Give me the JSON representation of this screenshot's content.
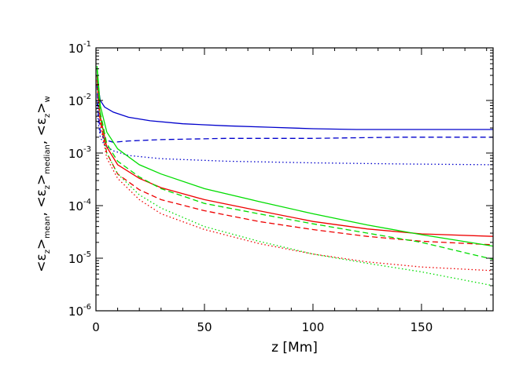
{
  "chart_data": {
    "type": "line",
    "xlabel": "z [Mm]",
    "ylabel_parts": [
      "<ε",
      "z",
      ">",
      "mean",
      ",  <ε",
      "z",
      ">",
      "median",
      ",  <ε",
      "z",
      ">",
      "w"
    ],
    "xlim": [
      0,
      183
    ],
    "ylim": [
      1e-06,
      0.1
    ],
    "yscale": "log",
    "x_ticks": [
      0,
      50,
      100,
      150
    ],
    "x_tick_labels": [
      "0",
      "50",
      "100",
      "150"
    ],
    "y_ticks": [
      {
        "value": 1e-06,
        "base": "10",
        "exp": "-6"
      },
      {
        "value": 1e-05,
        "base": "10",
        "exp": "-5"
      },
      {
        "value": 0.0001,
        "base": "10",
        "exp": "-4"
      },
      {
        "value": 0.001,
        "base": "10",
        "exp": "-3"
      },
      {
        "value": 0.01,
        "base": "10",
        "exp": "-2"
      },
      {
        "value": 0.1,
        "base": "10",
        "exp": "-1"
      }
    ],
    "grid": false,
    "series": [
      {
        "color": "#0000cc",
        "style": "solid",
        "points": [
          [
            0.5,
            0.03
          ],
          [
            1,
            0.018
          ],
          [
            2,
            0.01
          ],
          [
            4,
            0.0075
          ],
          [
            8,
            0.006
          ],
          [
            15,
            0.0048
          ],
          [
            25,
            0.0041
          ],
          [
            40,
            0.0036
          ],
          [
            60,
            0.0033
          ],
          [
            80,
            0.0031
          ],
          [
            100,
            0.0029
          ],
          [
            120,
            0.0028
          ],
          [
            140,
            0.0028
          ],
          [
            160,
            0.0028
          ],
          [
            183,
            0.0028
          ]
        ]
      },
      {
        "color": "#0000cc",
        "style": "dashed",
        "points": [
          [
            0.5,
            0.02
          ],
          [
            1,
            0.006
          ],
          [
            2,
            0.0025
          ],
          [
            4,
            0.0018
          ],
          [
            8,
            0.0016
          ],
          [
            15,
            0.0017
          ],
          [
            30,
            0.0018
          ],
          [
            60,
            0.0019
          ],
          [
            100,
            0.0019
          ],
          [
            140,
            0.002
          ],
          [
            183,
            0.002
          ]
        ]
      },
      {
        "color": "#0000cc",
        "style": "dotted",
        "points": [
          [
            0.5,
            0.01
          ],
          [
            1,
            0.004
          ],
          [
            2,
            0.002
          ],
          [
            4,
            0.0014
          ],
          [
            8,
            0.0011
          ],
          [
            15,
            0.0009
          ],
          [
            30,
            0.00078
          ],
          [
            60,
            0.0007
          ],
          [
            100,
            0.00065
          ],
          [
            140,
            0.00062
          ],
          [
            183,
            0.0006
          ]
        ]
      },
      {
        "color": "#ee0000",
        "style": "solid",
        "points": [
          [
            0.5,
            0.03
          ],
          [
            2,
            0.005
          ],
          [
            5,
            0.0013
          ],
          [
            10,
            0.0006
          ],
          [
            20,
            0.00033
          ],
          [
            30,
            0.00022
          ],
          [
            50,
            0.00013
          ],
          [
            75,
            8e-05
          ],
          [
            100,
            5e-05
          ],
          [
            125,
            3.6e-05
          ],
          [
            150,
            2.9e-05
          ],
          [
            183,
            2.6e-05
          ]
        ]
      },
      {
        "color": "#ee0000",
        "style": "dashed",
        "points": [
          [
            0.5,
            0.025
          ],
          [
            2,
            0.004
          ],
          [
            5,
            0.001
          ],
          [
            10,
            0.0004
          ],
          [
            20,
            0.0002
          ],
          [
            30,
            0.00013
          ],
          [
            50,
            8e-05
          ],
          [
            75,
            5e-05
          ],
          [
            100,
            3.5e-05
          ],
          [
            125,
            2.6e-05
          ],
          [
            150,
            2.1e-05
          ],
          [
            183,
            1.8e-05
          ]
        ]
      },
      {
        "color": "#ee0000",
        "style": "dotted",
        "points": [
          [
            0.5,
            0.02
          ],
          [
            2,
            0.0035
          ],
          [
            5,
            0.0008
          ],
          [
            10,
            0.00033
          ],
          [
            20,
            0.00013
          ],
          [
            30,
            7e-05
          ],
          [
            50,
            3.5e-05
          ],
          [
            75,
            1.9e-05
          ],
          [
            100,
            1.2e-05
          ],
          [
            125,
            8.5e-06
          ],
          [
            150,
            6.8e-06
          ],
          [
            183,
            5.8e-06
          ]
        ]
      },
      {
        "color": "#00dd00",
        "style": "solid",
        "points": [
          [
            0.5,
            0.045
          ],
          [
            2,
            0.008
          ],
          [
            5,
            0.0025
          ],
          [
            10,
            0.0012
          ],
          [
            20,
            0.0006
          ],
          [
            30,
            0.0004
          ],
          [
            50,
            0.00021
          ],
          [
            75,
            0.00012
          ],
          [
            100,
            7e-05
          ],
          [
            125,
            4.3e-05
          ],
          [
            150,
            2.8e-05
          ],
          [
            183,
            1.7e-05
          ]
        ]
      },
      {
        "color": "#00dd00",
        "style": "dashed",
        "points": [
          [
            0.5,
            0.04
          ],
          [
            2,
            0.006
          ],
          [
            5,
            0.0015
          ],
          [
            10,
            0.0007
          ],
          [
            20,
            0.00035
          ],
          [
            30,
            0.00021
          ],
          [
            50,
            0.00011
          ],
          [
            75,
            7e-05
          ],
          [
            100,
            4.5e-05
          ],
          [
            125,
            3e-05
          ],
          [
            150,
            2e-05
          ],
          [
            183,
            9.5e-06
          ]
        ]
      },
      {
        "color": "#00dd00",
        "style": "dotted",
        "points": [
          [
            0.5,
            0.03
          ],
          [
            2,
            0.005
          ],
          [
            5,
            0.001
          ],
          [
            10,
            0.0004
          ],
          [
            20,
            0.00016
          ],
          [
            30,
            9e-05
          ],
          [
            50,
            4e-05
          ],
          [
            75,
            2.1e-05
          ],
          [
            100,
            1.2e-05
          ],
          [
            125,
            8e-06
          ],
          [
            150,
            5.5e-06
          ],
          [
            183,
            3e-06
          ]
        ]
      }
    ]
  }
}
